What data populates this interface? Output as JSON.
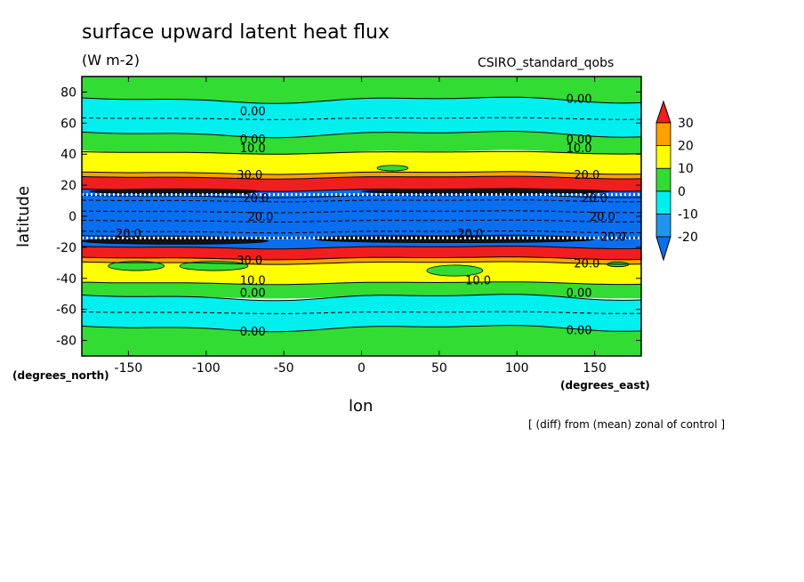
{
  "chart_data": {
    "type": "heatmap",
    "title": "surface upward latent heat flux",
    "units": "(W m-2)",
    "model_label": "CSIRO_standard_qobs",
    "xlabel": "lon",
    "ylabel": "latitude",
    "x_units_label": "(degrees_east)",
    "y_units_label": "(degrees_north)",
    "footnote": "[ (diff) from (mean) zonal of control ]",
    "xlim": [
      -180,
      180
    ],
    "ylim": [
      -90,
      90
    ],
    "x_ticks": [
      -150,
      -100,
      -50,
      0,
      50,
      100,
      150
    ],
    "x_tick_labels": [
      "-150",
      "-100",
      "-50",
      "0",
      "50",
      "100",
      "150"
    ],
    "y_ticks": [
      -80,
      -60,
      -40,
      -20,
      0,
      20,
      40,
      60,
      80
    ],
    "y_tick_labels": [
      "-80",
      "-60",
      "-40",
      "-20",
      "0",
      "20",
      "40",
      "60",
      "80"
    ],
    "colorbar": {
      "levels": [
        -20,
        -10,
        0,
        10,
        20,
        30
      ],
      "labels": [
        "-20",
        "-10",
        "0",
        "10",
        "20",
        "30"
      ],
      "colors": [
        "#0a6ef0",
        "#1e96f0",
        "#00f0f0",
        "#32dc32",
        "#ffff00",
        "#ffa000",
        "#f01e1e"
      ]
    },
    "bands": [
      {
        "lat_min": 75,
        "lat_max": 90,
        "value_class": "0 to 10",
        "color": "#32dc32"
      },
      {
        "lat_min": 53,
        "lat_max": 75,
        "value_class": "-10 to 0",
        "color": "#00f0f0"
      },
      {
        "lat_min": 41,
        "lat_max": 53,
        "value_class": "0 to 10",
        "color": "#32dc32"
      },
      {
        "lat_min": 28,
        "lat_max": 41,
        "value_class": "10 to 20",
        "color": "#ffff00"
      },
      {
        "lat_min": 25,
        "lat_max": 28,
        "value_class": "20 to 30",
        "color": "#ffa000"
      },
      {
        "lat_min": 17,
        "lat_max": 25,
        "value_class": "> 30",
        "color": "#f01e1e"
      },
      {
        "lat_min": 13,
        "lat_max": 17,
        "value_class": "< -20",
        "color": "#0a6ef0"
      },
      {
        "lat_min": -13,
        "lat_max": 13,
        "value_class": "< -20",
        "color": "#0a6ef0"
      },
      {
        "lat_min": -20,
        "lat_max": -13,
        "value_class": "< -20",
        "color": "#0a6ef0"
      },
      {
        "lat_min": -27,
        "lat_max": -20,
        "value_class": "> 30",
        "color": "#f01e1e"
      },
      {
        "lat_min": -30,
        "lat_max": -27,
        "value_class": "20 to 30",
        "color": "#ffa000"
      },
      {
        "lat_min": -43,
        "lat_max": -30,
        "value_class": "10 to 20",
        "color": "#ffff00"
      },
      {
        "lat_min": -52,
        "lat_max": -43,
        "value_class": "0 to 10",
        "color": "#32dc32"
      },
      {
        "lat_min": -72,
        "lat_max": -52,
        "value_class": "-10 to 0",
        "color": "#00f0f0"
      },
      {
        "lat_min": -90,
        "lat_max": -72,
        "value_class": "0 to 10",
        "color": "#32dc32"
      }
    ],
    "contour_labels": [
      {
        "text": "0.00",
        "lon": -70,
        "lat": 68
      },
      {
        "text": "0.00",
        "lon": 140,
        "lat": 76
      },
      {
        "text": "0.00",
        "lon": -70,
        "lat": 50
      },
      {
        "text": "0.00",
        "lon": 140,
        "lat": 50
      },
      {
        "text": "10.0",
        "lon": -70,
        "lat": 44
      },
      {
        "text": "10.0",
        "lon": 140,
        "lat": 44
      },
      {
        "text": "30.0",
        "lon": -72,
        "lat": 27
      },
      {
        "text": "20.0",
        "lon": 145,
        "lat": 27
      },
      {
        "text": "20.0",
        "lon": -68,
        "lat": 12
      },
      {
        "text": "20.0",
        "lon": 150,
        "lat": 12
      },
      {
        "text": "20.0",
        "lon": -65,
        "lat": 0
      },
      {
        "text": "20.0",
        "lon": 155,
        "lat": 0
      },
      {
        "text": "20.0",
        "lon": -150,
        "lat": -11
      },
      {
        "text": "20.0",
        "lon": 70,
        "lat": -11
      },
      {
        "text": "20.0",
        "lon": 162,
        "lat": -13
      },
      {
        "text": "30.0",
        "lon": -72,
        "lat": -28
      },
      {
        "text": "20.0",
        "lon": 145,
        "lat": -30
      },
      {
        "text": "10.0",
        "lon": -70,
        "lat": -41
      },
      {
        "text": "10.0",
        "lon": 75,
        "lat": -41
      },
      {
        "text": "0.00",
        "lon": -70,
        "lat": -49
      },
      {
        "text": "0.00",
        "lon": 140,
        "lat": -49
      },
      {
        "text": "0.00",
        "lon": -70,
        "lat": -74
      },
      {
        "text": "0.00",
        "lon": 140,
        "lat": -73
      }
    ]
  }
}
